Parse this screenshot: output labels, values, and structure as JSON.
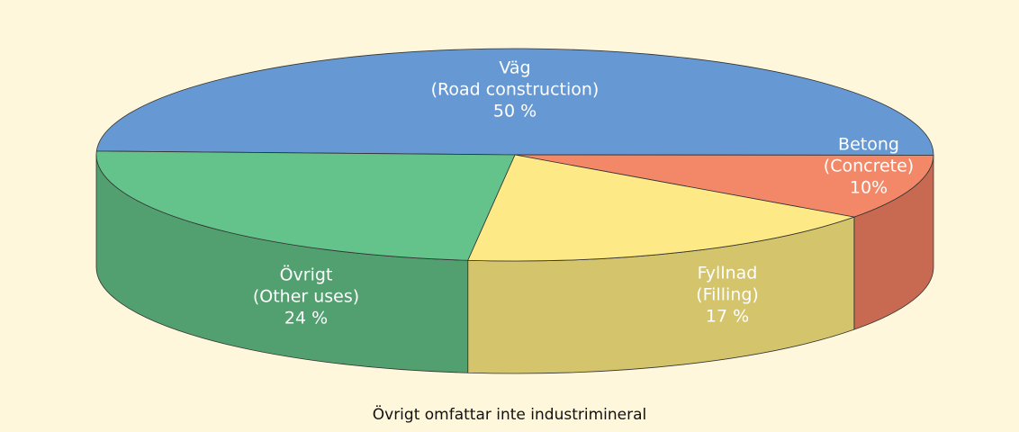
{
  "chart_data": {
    "type": "pie3d",
    "categories": [
      "Väg",
      "Betong",
      "Fyllnad",
      "Övrigt"
    ],
    "category_translations": [
      "(Road construction)",
      "(Concrete)",
      "(Filling)",
      "(Other uses)"
    ],
    "values": [
      50,
      10,
      17,
      24
    ],
    "value_labels": [
      "50 %",
      "10%",
      "17 %",
      "24 %"
    ],
    "colors": [
      "#6699d3",
      "#f28868",
      "#fde985",
      "#64c28b"
    ],
    "side_colors": [
      "#4f7fbf",
      "#c86a52",
      "#d4c46c",
      "#52a070"
    ],
    "caption": "Övrigt omfattar inte industrimineral"
  }
}
